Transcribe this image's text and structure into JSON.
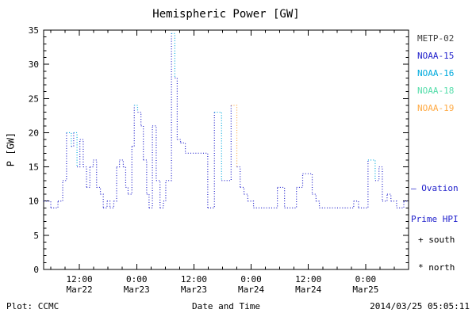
{
  "footer": {
    "left": "Plot: CCMC",
    "right": "2014/03/25 05:05:11"
  },
  "legend": {
    "satellites": [
      {
        "label": "METP-02",
        "color": "#3c3c3c"
      },
      {
        "label": "NOAA-15",
        "color": "#2222cc"
      },
      {
        "label": "NOAA-16",
        "color": "#00aadd"
      },
      {
        "label": "NOAA-18",
        "color": "#55ddaa"
      },
      {
        "label": "NOAA-19",
        "color": "#ffaa44"
      }
    ],
    "ovation": {
      "line1": "— Ovation",
      "line2": "Prime HPI",
      "color": "#2222cc"
    },
    "markers": [
      {
        "symbol": "+",
        "label": "south"
      },
      {
        "symbol": "*",
        "label": "north"
      }
    ]
  },
  "chart_data": {
    "type": "line",
    "step": true,
    "line_style": "dotted",
    "title": "Hemispheric Power [GW]",
    "xlabel": "Date and Time",
    "ylabel": "P [GW]",
    "ylim": [
      0,
      35
    ],
    "y_ticks": [
      0,
      5,
      10,
      15,
      20,
      25,
      30,
      35
    ],
    "y_minor_step": 1,
    "x_unit": "hours since 2014-03-22 00:00",
    "xlim_hours": [
      4.5,
      81
    ],
    "x_minor_step": 3,
    "x_ticks": [
      {
        "t": 12,
        "line1": "12:00",
        "line2": "Mar22"
      },
      {
        "t": 24,
        "line1": "0:00",
        "line2": "Mar23"
      },
      {
        "t": 36,
        "line1": "12:00",
        "line2": "Mar23"
      },
      {
        "t": 48,
        "line1": "0:00",
        "line2": "Mar24"
      },
      {
        "t": 60,
        "line1": "12:00",
        "line2": "Mar24"
      },
      {
        "t": 72,
        "line1": "0:00",
        "line2": "Mar25"
      }
    ],
    "palette": [
      "#2222cc",
      "#00aadd",
      "#ffaa44"
    ],
    "points": [
      [
        4.5,
        10
      ],
      [
        6.0,
        9
      ],
      [
        7.5,
        10
      ],
      [
        8.5,
        13
      ],
      [
        9.3,
        20,
        1
      ],
      [
        10.3,
        18
      ],
      [
        10.8,
        20,
        1
      ],
      [
        11.5,
        15
      ],
      [
        12.1,
        19
      ],
      [
        12.8,
        15
      ],
      [
        13.5,
        12
      ],
      [
        14.2,
        15
      ],
      [
        14.9,
        16
      ],
      [
        15.6,
        12
      ],
      [
        16.4,
        11
      ],
      [
        17.0,
        9
      ],
      [
        17.8,
        10
      ],
      [
        18.4,
        9
      ],
      [
        19.2,
        10
      ],
      [
        19.8,
        15
      ],
      [
        20.4,
        16
      ],
      [
        21.2,
        15
      ],
      [
        21.7,
        12
      ],
      [
        22.2,
        11
      ],
      [
        23.0,
        18
      ],
      [
        23.5,
        24,
        1
      ],
      [
        24.2,
        23
      ],
      [
        24.9,
        21
      ],
      [
        25.4,
        16
      ],
      [
        26.1,
        11
      ],
      [
        26.6,
        9
      ],
      [
        27.3,
        21
      ],
      [
        28.1,
        13
      ],
      [
        28.9,
        9
      ],
      [
        29.6,
        10
      ],
      [
        30.1,
        13
      ],
      [
        31.3,
        34.5,
        1
      ],
      [
        32.0,
        28
      ],
      [
        32.5,
        19
      ],
      [
        33.2,
        18.5
      ],
      [
        34.2,
        17
      ],
      [
        38.9,
        9
      ],
      [
        40.3,
        23,
        1
      ],
      [
        41.8,
        13
      ],
      [
        43.8,
        24,
        2
      ],
      [
        45.0,
        15
      ],
      [
        45.7,
        12
      ],
      [
        46.5,
        11
      ],
      [
        47.3,
        10
      ],
      [
        48.5,
        9
      ],
      [
        53.5,
        12
      ],
      [
        55.0,
        9
      ],
      [
        57.5,
        12
      ],
      [
        58.8,
        14
      ],
      [
        60.8,
        11
      ],
      [
        61.6,
        10
      ],
      [
        62.3,
        9
      ],
      [
        69.5,
        10
      ],
      [
        70.5,
        9
      ],
      [
        72.5,
        16,
        1
      ],
      [
        74.0,
        13
      ],
      [
        74.8,
        15
      ],
      [
        75.5,
        10
      ],
      [
        76.5,
        11
      ],
      [
        77.3,
        10
      ],
      [
        78.5,
        9
      ],
      [
        80.0,
        10
      ]
    ]
  }
}
